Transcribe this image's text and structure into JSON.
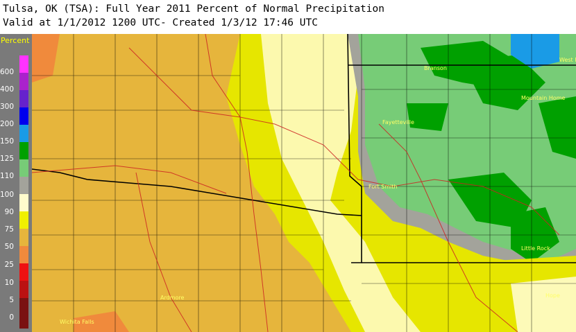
{
  "header": {
    "line1": "Tulsa, OK (TSA): Full Year 2011 Percent of Normal Precipitation",
    "line2": "Valid at 1/1/2012 1200 UTC- Created 1/3/12 17:46 UTC"
  },
  "legend": {
    "title": "Percent",
    "entries": [
      {
        "label": "600",
        "color": "#ff33ff"
      },
      {
        "label": "400",
        "color": "#aa22cc"
      },
      {
        "label": "300",
        "color": "#6622cc"
      },
      {
        "label": "200",
        "color": "#0000ee"
      },
      {
        "label": "150",
        "color": "#1a9be6"
      },
      {
        "label": "125",
        "color": "#00a000"
      },
      {
        "label": "110",
        "color": "#77cc77"
      },
      {
        "label": "100",
        "color": "#a3a39b"
      },
      {
        "label": "90",
        "color": "#fffccc"
      },
      {
        "label": "75",
        "color": "#f0f000"
      },
      {
        "label": "50",
        "color": "#e6b53c"
      },
      {
        "label": "25",
        "color": "#f08a3c"
      },
      {
        "label": "10",
        "color": "#ee1111"
      },
      {
        "label": "5",
        "color": "#bb1111"
      },
      {
        "label": "0",
        "color": "#7a1111"
      }
    ]
  },
  "map": {
    "cities": [
      {
        "name": "Branson"
      },
      {
        "name": "Mountain Home"
      },
      {
        "name": "Fayetteville"
      },
      {
        "name": "Fort Smith"
      },
      {
        "name": "Little Rock"
      },
      {
        "name": "Ardmore"
      },
      {
        "name": "Wichita Falls"
      },
      {
        "name": "Hope"
      },
      {
        "name": "West Plains"
      }
    ]
  }
}
